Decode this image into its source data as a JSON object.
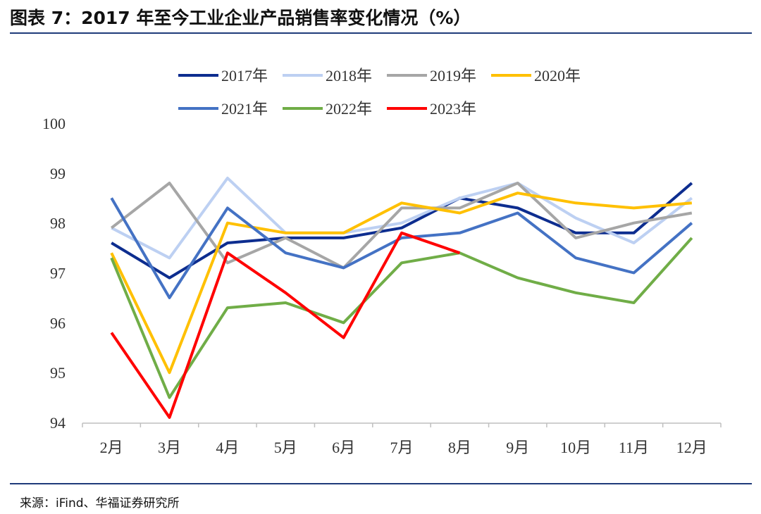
{
  "header": {
    "title": "图表 7：2017 年至今工业企业产品销售率变化情况（%）"
  },
  "footer": {
    "source": "来源：iFind、华福证券研究所"
  },
  "colors": {
    "rule": "#1f3b7a",
    "axis": "#bfbfbf"
  },
  "chart_data": {
    "type": "line",
    "title": "",
    "xlabel": "",
    "ylabel": "",
    "categories": [
      "2月",
      "3月",
      "4月",
      "5月",
      "6月",
      "7月",
      "8月",
      "9月",
      "10月",
      "11月",
      "12月"
    ],
    "ylim": [
      94,
      100
    ],
    "yticks": [
      "94",
      "95",
      "96",
      "97",
      "98",
      "99",
      "100"
    ],
    "grid": false,
    "legend": "top",
    "series": [
      {
        "name": "2017年",
        "color": "#0d2d8f",
        "values": [
          97.6,
          96.9,
          97.6,
          97.7,
          97.7,
          97.9,
          98.5,
          98.3,
          97.8,
          97.8,
          98.8
        ]
      },
      {
        "name": "2018年",
        "color": "#bdd0f2",
        "values": [
          97.9,
          97.3,
          98.9,
          97.8,
          97.8,
          98.0,
          98.5,
          98.8,
          98.1,
          97.6,
          98.5
        ]
      },
      {
        "name": "2019年",
        "color": "#a6a6a6",
        "values": [
          97.9,
          98.8,
          97.2,
          97.7,
          97.1,
          98.3,
          98.3,
          98.8,
          97.7,
          98.0,
          98.2
        ]
      },
      {
        "name": "2020年",
        "color": "#ffc000",
        "values": [
          97.4,
          95.0,
          98.0,
          97.8,
          97.8,
          98.4,
          98.2,
          98.6,
          98.4,
          98.3,
          98.4
        ]
      },
      {
        "name": "2021年",
        "color": "#4472c4",
        "values": [
          98.5,
          96.5,
          98.3,
          97.4,
          97.1,
          97.7,
          97.8,
          98.2,
          97.3,
          97.0,
          98.0
        ]
      },
      {
        "name": "2022年",
        "color": "#70ad47",
        "values": [
          97.3,
          94.5,
          96.3,
          96.4,
          96.0,
          97.2,
          97.4,
          96.9,
          96.6,
          96.4,
          97.7
        ]
      },
      {
        "name": "2023年",
        "color": "#ff0000",
        "values": [
          95.8,
          94.1,
          97.4,
          96.6,
          95.7,
          97.8,
          97.4,
          null,
          null,
          null,
          null
        ]
      }
    ]
  }
}
